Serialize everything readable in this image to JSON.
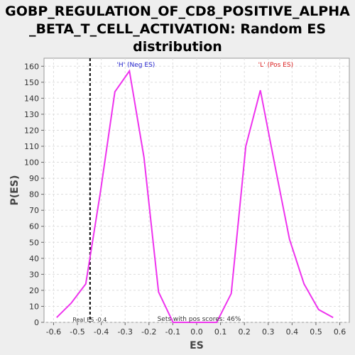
{
  "chart_data": {
    "type": "line",
    "title_lines": [
      "GOBP_REGULATION_OF_CD8_POSITIVE_ALPHA",
      "_BETA_T_CELL_ACTIVATION: Random ES",
      "distribution"
    ],
    "xlabel": "ES",
    "ylabel": "P(ES)",
    "xlim": [
      -0.64,
      0.64
    ],
    "ylim": [
      0,
      165
    ],
    "xticks": [
      -0.6,
      -0.5,
      -0.4,
      -0.3,
      -0.2,
      -0.1,
      0.0,
      0.1,
      0.2,
      0.3,
      0.4,
      0.5,
      0.6
    ],
    "xtick_labels": [
      "-0.6",
      "-0.5",
      "-0.4",
      "-0.3",
      "-0.2",
      "-0.1",
      "0.0",
      "0.1",
      "0.2",
      "0.3",
      "0.4",
      "0.5",
      "0.6"
    ],
    "yticks": [
      0,
      10,
      20,
      30,
      40,
      50,
      60,
      70,
      80,
      90,
      100,
      110,
      120,
      130,
      140,
      150,
      160
    ],
    "grid": true,
    "series": [
      {
        "color": "#ee33ee",
        "x": [
          -0.587,
          -0.526,
          -0.465,
          -0.404,
          -0.343,
          -0.282,
          -0.221,
          -0.16,
          -0.099,
          -0.038,
          0.023,
          0.084,
          0.145,
          0.206,
          0.267,
          0.328,
          0.389,
          0.45,
          0.511,
          0.572
        ],
        "y": [
          3,
          12,
          24,
          81,
          144,
          157,
          103,
          19,
          0,
          0,
          0,
          0,
          18,
          110,
          145,
          98,
          52,
          24,
          8,
          3
        ]
      }
    ],
    "real_es": -0.4,
    "annotations": {
      "neg_label": "'H' (Neg ES)",
      "pos_label": "'L' (Pos ES)",
      "real_es_label": "Real ES -0.4",
      "pos_scores_label": "Sets with pos scores: 46%"
    },
    "colors": {
      "neg_label": "#2222cc",
      "pos_label": "#dd2222",
      "line": "#ee33ee"
    }
  }
}
